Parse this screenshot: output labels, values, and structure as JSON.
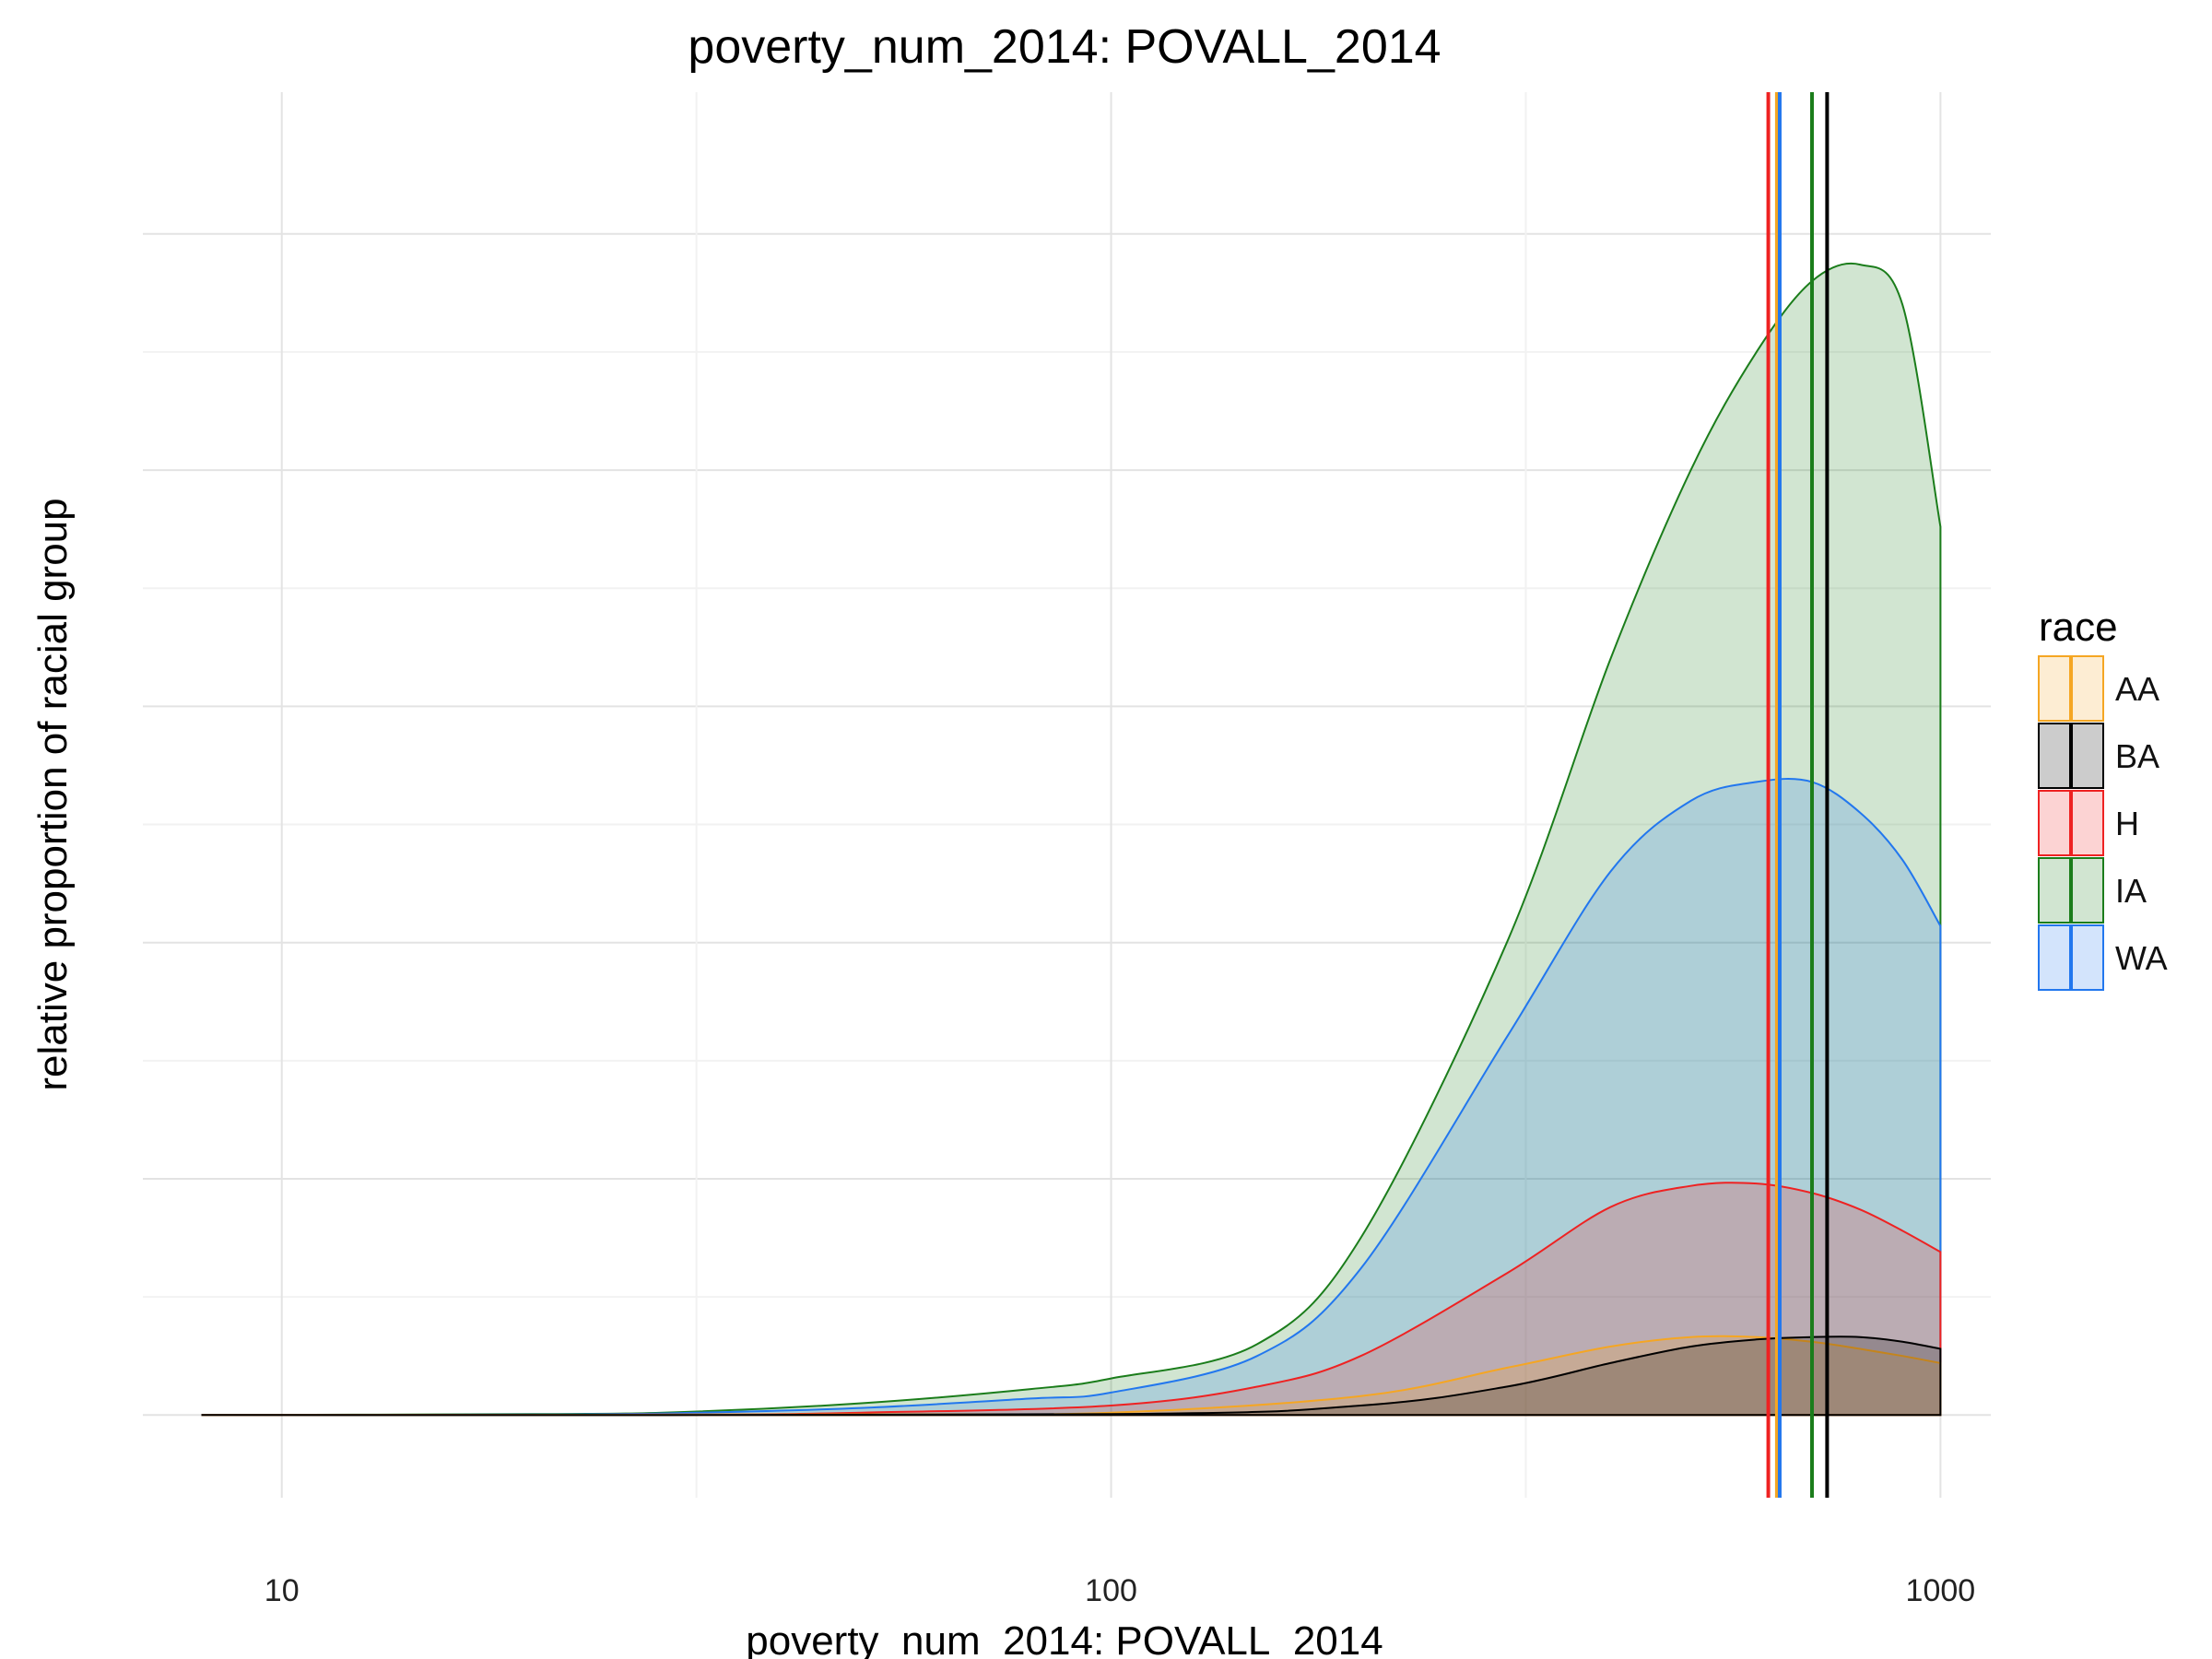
{
  "chart_data": {
    "type": "area",
    "title": "poverty_num_2014: POVALL_2014",
    "xlabel": "poverty_num_2014: POVALL_2014",
    "ylabel": "relative proportion of racial group",
    "x_scale": "log10",
    "xlim": [
      6.8,
      1150
    ],
    "ylim": [
      -0.035,
      0.56
    ],
    "x_ticks": [
      10,
      100,
      1000
    ],
    "x_tick_labels": [
      "10",
      "100",
      "1000"
    ],
    "y_gridlines": [
      0,
      0.05,
      0.1,
      0.15,
      0.2,
      0.25,
      0.3,
      0.35,
      0.4,
      0.45,
      0.5
    ],
    "y_tick_labels_shown": false,
    "grid": true,
    "legend": {
      "title": "race",
      "position": "right"
    },
    "series": [
      {
        "name": "IA",
        "color": "#1b7d1b",
        "points": [
          [
            8,
            0
          ],
          [
            20,
            0.0004
          ],
          [
            30,
            0.0012
          ],
          [
            50,
            0.005
          ],
          [
            80,
            0.011
          ],
          [
            100,
            0.0155
          ],
          [
            150,
            0.03
          ],
          [
            200,
            0.075
          ],
          [
            300,
            0.2
          ],
          [
            400,
            0.32
          ],
          [
            500,
            0.4
          ],
          [
            600,
            0.45
          ],
          [
            700,
            0.48
          ],
          [
            800,
            0.487
          ],
          [
            900,
            0.47
          ],
          [
            1000,
            0.376
          ]
        ]
      },
      {
        "name": "WA",
        "color": "#2277ee",
        "points": [
          [
            8,
            0
          ],
          [
            20,
            0.0002
          ],
          [
            30,
            0.0008
          ],
          [
            50,
            0.003
          ],
          [
            80,
            0.007
          ],
          [
            100,
            0.0095
          ],
          [
            150,
            0.025
          ],
          [
            200,
            0.062
          ],
          [
            300,
            0.16
          ],
          [
            400,
            0.23
          ],
          [
            500,
            0.26
          ],
          [
            600,
            0.268
          ],
          [
            700,
            0.268
          ],
          [
            800,
            0.255
          ],
          [
            900,
            0.235
          ],
          [
            1000,
            0.207
          ]
        ]
      },
      {
        "name": "H",
        "color": "#ee2222",
        "points": [
          [
            8,
            0
          ],
          [
            30,
            0.0002
          ],
          [
            50,
            0.001
          ],
          [
            100,
            0.004
          ],
          [
            150,
            0.012
          ],
          [
            200,
            0.025
          ],
          [
            300,
            0.06
          ],
          [
            400,
            0.088
          ],
          [
            500,
            0.097
          ],
          [
            600,
            0.098
          ],
          [
            700,
            0.094
          ],
          [
            800,
            0.087
          ],
          [
            900,
            0.078
          ],
          [
            1000,
            0.069
          ]
        ]
      },
      {
        "name": "AA",
        "color": "#f5a623",
        "points": [
          [
            8,
            0
          ],
          [
            50,
            0.0003
          ],
          [
            100,
            0.001
          ],
          [
            200,
            0.008
          ],
          [
            300,
            0.02
          ],
          [
            400,
            0.029
          ],
          [
            500,
            0.033
          ],
          [
            600,
            0.033
          ],
          [
            700,
            0.031
          ],
          [
            800,
            0.028
          ],
          [
            900,
            0.025
          ],
          [
            1000,
            0.022
          ]
        ]
      },
      {
        "name": "BA",
        "color": "#000000",
        "points": [
          [
            8,
            0
          ],
          [
            100,
            0.0004
          ],
          [
            200,
            0.004
          ],
          [
            300,
            0.012
          ],
          [
            400,
            0.022
          ],
          [
            500,
            0.029
          ],
          [
            600,
            0.032
          ],
          [
            700,
            0.033
          ],
          [
            800,
            0.033
          ],
          [
            900,
            0.031
          ],
          [
            1000,
            0.028
          ]
        ]
      }
    ],
    "vlines": [
      {
        "name": "H",
        "x": 620,
        "color": "#ee2222"
      },
      {
        "name": "AA",
        "x": 635,
        "color": "#f5a623"
      },
      {
        "name": "WA",
        "x": 640,
        "color": "#2277ee"
      },
      {
        "name": "IA",
        "x": 700,
        "color": "#1b7d1b"
      },
      {
        "name": "BA",
        "x": 730,
        "color": "#000000"
      }
    ],
    "legend_order": [
      "AA",
      "BA",
      "H",
      "IA",
      "WA"
    ]
  }
}
